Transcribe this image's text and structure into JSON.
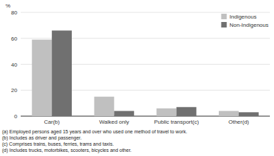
{
  "chart_data": {
    "type": "bar",
    "categories": [
      "Car(b)",
      "Walked only",
      "Public transport(c)",
      "Other(d)"
    ],
    "series": [
      {
        "name": "Indigenous",
        "color": "#c0c0c0",
        "values": [
          59,
          15,
          6,
          4
        ]
      },
      {
        "name": "Non-Indigenous",
        "color": "#707070",
        "values": [
          66,
          4,
          7,
          3
        ]
      }
    ],
    "y_label": "%",
    "ylim": [
      0,
      80
    ],
    "yticks": [
      0,
      20,
      40,
      60,
      80
    ],
    "grid": true,
    "legend": "upper right",
    "annotations": [
      "(a) Employed persons aged 15 years and over who used one method of travel to work.",
      "(b) Includes as driver and passenger.",
      "(c) Comprises trains, buses, ferries, trams and taxis.",
      "(d) Includes trucks, motorbikes, scooters, bicycles and other."
    ]
  }
}
